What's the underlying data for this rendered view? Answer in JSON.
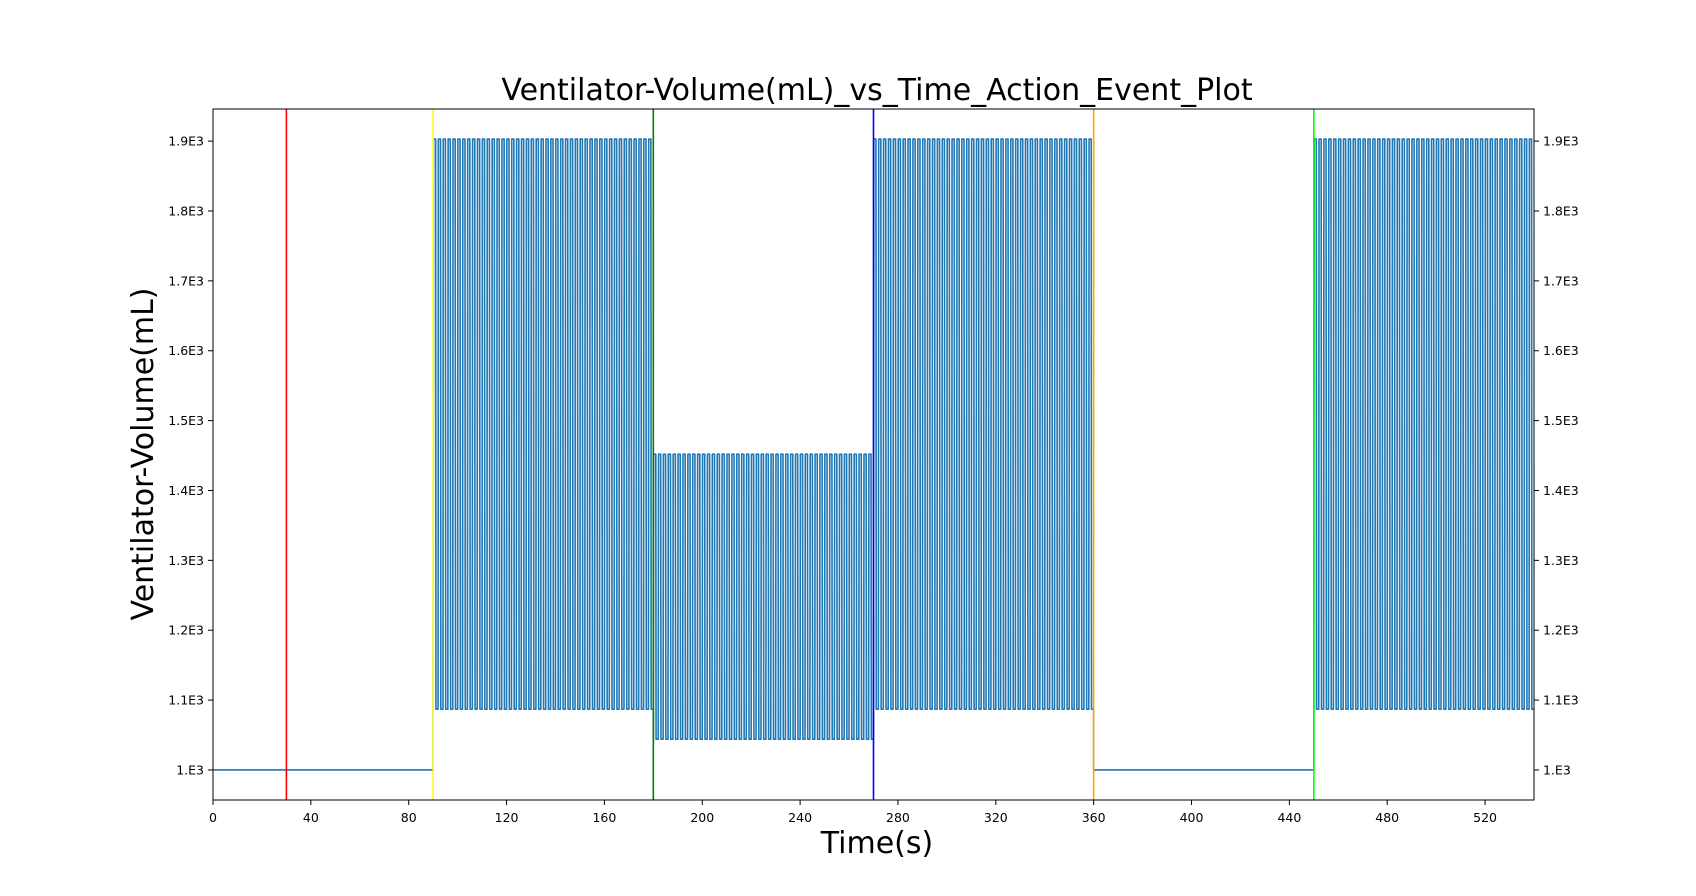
{
  "chart_data": {
    "type": "line",
    "title": "Ventilator-Volume(mL)_vs_Time_Action_Event_Plot",
    "xlabel": "Time(s)",
    "ylabel": "Ventilator-Volume(mL)",
    "xlim": [
      0,
      540
    ],
    "ylim": [
      957,
      1946
    ],
    "x_ticks": [
      0,
      40,
      80,
      120,
      160,
      200,
      240,
      280,
      320,
      360,
      400,
      440,
      480,
      520
    ],
    "x_tick_labels": [
      "0",
      "40",
      "80",
      "120",
      "160",
      "200",
      "240",
      "280",
      "320",
      "360",
      "400",
      "440",
      "480",
      "520"
    ],
    "y_ticks": [
      1000,
      1100,
      1200,
      1300,
      1400,
      1500,
      1600,
      1700,
      1800,
      1900
    ],
    "y_tick_labels": [
      "1.E3",
      "1.1E3",
      "1.2E3",
      "1.3E3",
      "1.4E3",
      "1.5E3",
      "1.6E3",
      "1.7E3",
      "1.8E3",
      "1.9E3"
    ],
    "grid": false,
    "series": [
      {
        "color": "#1f77b4",
        "segments": [
          {
            "x_start": 0,
            "x_end": 90,
            "kind": "flat",
            "value": 1000
          },
          {
            "x_start": 90,
            "x_end": 180,
            "kind": "oscillating",
            "min": 1087,
            "max": 1903,
            "cycles": 45
          },
          {
            "x_start": 180,
            "x_end": 270,
            "kind": "oscillating",
            "min": 1044,
            "max": 1452,
            "cycles": 45
          },
          {
            "x_start": 270,
            "x_end": 360,
            "kind": "oscillating",
            "min": 1087,
            "max": 1903,
            "cycles": 45
          },
          {
            "x_start": 360,
            "x_end": 450,
            "kind": "flat",
            "value": 1000
          },
          {
            "x_start": 450,
            "x_end": 540,
            "kind": "oscillating",
            "min": 1087,
            "max": 1903,
            "cycles": 45
          }
        ]
      }
    ],
    "event_lines": [
      {
        "x": 30,
        "color": "#ff0000"
      },
      {
        "x": 90,
        "color": "#ffff00"
      },
      {
        "x": 180,
        "color": "#008000"
      },
      {
        "x": 270,
        "color": "#0000ff"
      },
      {
        "x": 360,
        "color": "#ffa500"
      },
      {
        "x": 450,
        "color": "#00ff00"
      }
    ]
  }
}
